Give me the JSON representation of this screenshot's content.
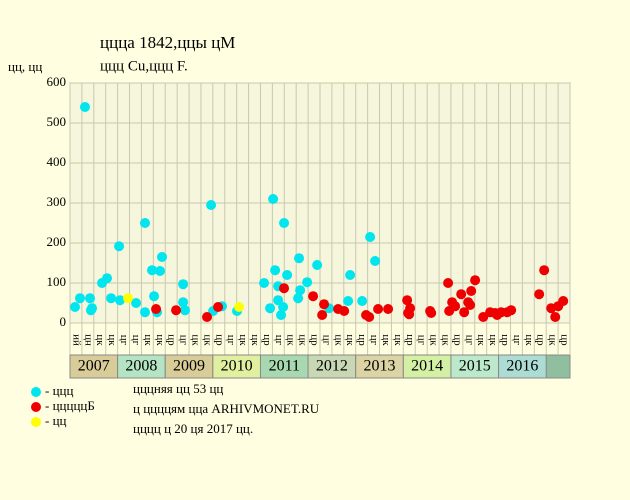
{
  "chart_data": {
    "type": "scatter",
    "title": "ццца 1842,ццы цМ",
    "subtitle": "ццц Cu,ццц F.",
    "y_label": "цц, цц",
    "ylim": [
      0,
      600
    ],
    "yticks": [
      0,
      100,
      200,
      300,
      400,
      500,
      600
    ],
    "xlim": [
      0,
      42
    ],
    "xticks": [
      0,
      1,
      2,
      3,
      4,
      5,
      6,
      7,
      8,
      9,
      10,
      11,
      12,
      13,
      14,
      15,
      16,
      17,
      18,
      19,
      20,
      21,
      22,
      23,
      24,
      25,
      26,
      27,
      28,
      29,
      30,
      31,
      32,
      33,
      34,
      35,
      36,
      37,
      38,
      39,
      40,
      41,
      42
    ],
    "grid": true,
    "categories": [
      "ий",
      "цн",
      "цк",
      "цк",
      "цг",
      "цг",
      "цк",
      "цк",
      "цр",
      "цг",
      "цк",
      "цк",
      "цр",
      "цг",
      "цк",
      "цк",
      "цр",
      "цг",
      "цк",
      "цк",
      "цр",
      "цг",
      "цк",
      "цк",
      "цр",
      "цг",
      "цк",
      "цк",
      "цр",
      "цг",
      "цк",
      "цк",
      "цр",
      "цг",
      "цк",
      "цк",
      "цр",
      "цг",
      "цк",
      "цр",
      "цк",
      "цр"
    ],
    "years": [
      {
        "label": "2007",
        "color": "#d8cc98"
      },
      {
        "label": "2008",
        "color": "#b4e4c4"
      },
      {
        "label": "2009",
        "color": "#d8cc98"
      },
      {
        "label": "2010",
        "color": "#e0f0a0"
      },
      {
        "label": "2011",
        "color": "#a8d8b0"
      },
      {
        "label": "2012",
        "color": "#c8d8b4"
      },
      {
        "label": "2013",
        "color": "#dcd4a4"
      },
      {
        "label": "2014",
        "color": "#d4f0a4"
      },
      {
        "label": "2015",
        "color": "#bce8cc"
      },
      {
        "label": "2016",
        "color": "#acdcd4"
      }
    ],
    "series": [
      {
        "name": "- ццц",
        "color": "#00e5ee",
        "x": [
          0.42,
          0.84,
          1.26,
          1.68,
          1.85,
          1.76,
          2.69,
          3.11,
          3.45,
          4.12,
          4.2,
          5.55,
          6.3,
          6.3,
          6.89,
          7.06,
          7.31,
          7.56,
          7.73,
          9.5,
          9.5,
          9.66,
          11.85,
          12.02,
          12.77,
          14.03,
          16.3,
          16.81,
          17.06,
          17.23,
          17.48,
          17.48,
          17.73,
          17.9,
          17.98,
          18.24,
          19.16,
          19.24,
          19.33,
          19.92,
          20.76,
          21.76,
          23.36,
          23.53,
          24.54,
          25.21,
          25.63
        ],
        "values": [
          40,
          62,
          540,
          62,
          37,
          32,
          100,
          112,
          62,
          192,
          57,
          50,
          250,
          27,
          132,
          67,
          27,
          130,
          165,
          97,
          52,
          32,
          295,
          30,
          42,
          30,
          100,
          37,
          310,
          132,
          57,
          92,
          20,
          40,
          250,
          120,
          62,
          162,
          82,
          102,
          145,
          37,
          55,
          120,
          55,
          215,
          155
        ]
      },
      {
        "name": "- цццццБ",
        "color": "#ee0000",
        "x": [
          8.91,
          7.23,
          11.51,
          12.44,
          17.98,
          20.42,
          21.18,
          21.34,
          22.52,
          23.03,
          24.87,
          25.13,
          25.88,
          26.72,
          28.32,
          28.4,
          28.57,
          28.49,
          30.25,
          30.34,
          31.76,
          31.85,
          32.1,
          32.35,
          32.86,
          33.11,
          33.45,
          33.7,
          34.03,
          33.61,
          34.71,
          35.29,
          35.71,
          35.88,
          36.22,
          36.72,
          37.06,
          39.41,
          39.83,
          40.42,
          40.76,
          41.01,
          41.43
        ],
        "values": [
          32,
          35,
          15,
          40,
          87,
          67,
          20,
          47,
          35,
          30,
          20,
          15,
          35,
          35,
          57,
          25,
          37,
          22,
          30,
          25,
          100,
          30,
          52,
          42,
          72,
          27,
          52,
          80,
          107,
          45,
          15,
          27,
          25,
          20,
          27,
          27,
          32,
          72,
          132,
          37,
          15,
          42,
          55
        ]
      },
      {
        "name": "- цц",
        "color": "#ffff00",
        "x": [
          4.87,
          14.2
        ],
        "values": [
          62,
          40
        ]
      }
    ],
    "notes": [
      "цццняя цц 53 цц",
      "ц ццццям цца ARHIVMONET.RU",
      "цццц ц 20 ця 2017 цц."
    ]
  }
}
